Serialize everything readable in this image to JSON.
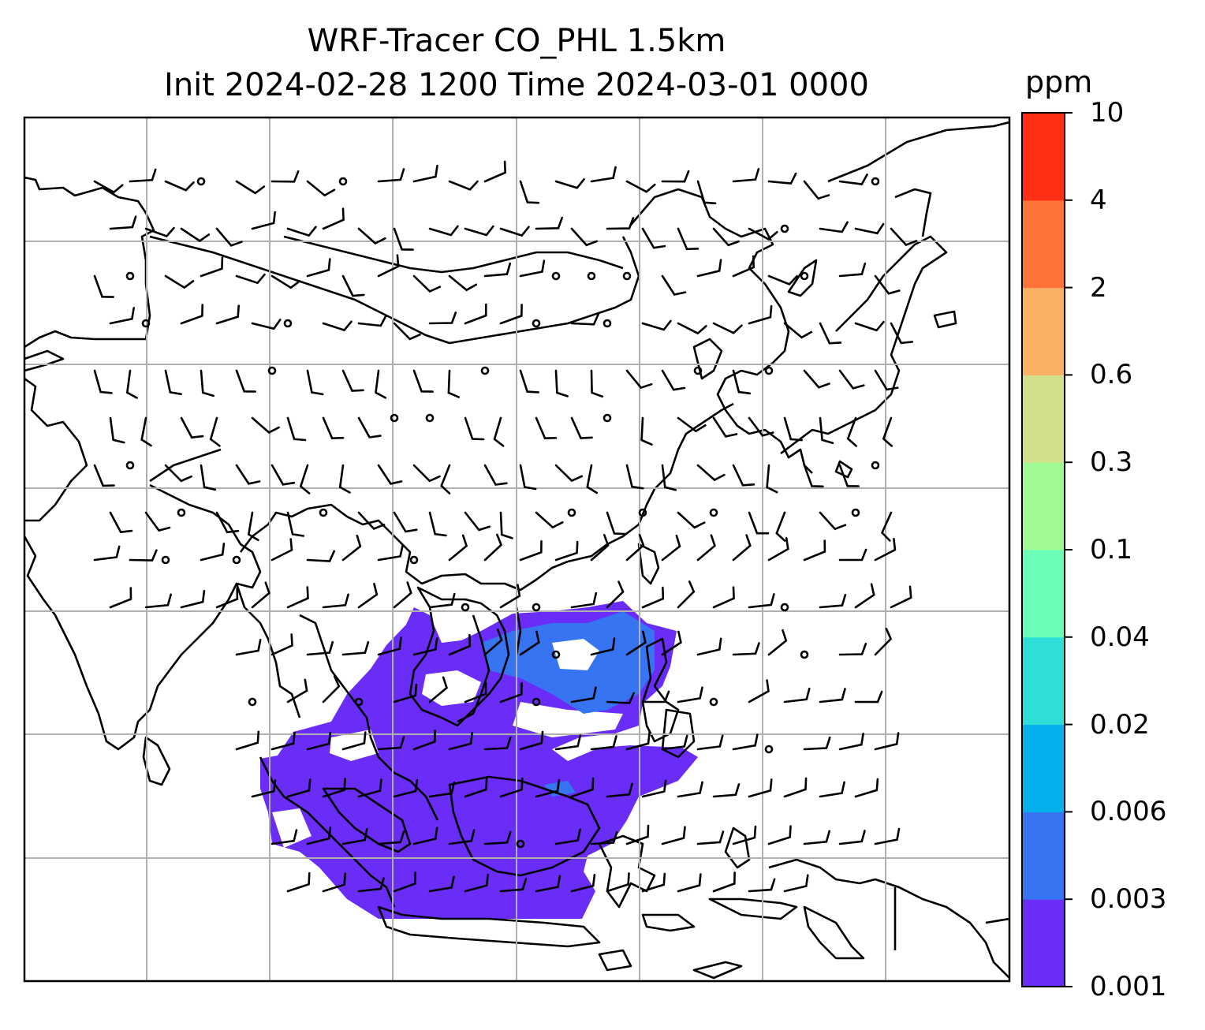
{
  "title": {
    "line1": "WRF-Tracer CO_PHL 1.5km",
    "line2": "Init 2024-02-28 1200 Time 2024-03-01 0000"
  },
  "colorbar": {
    "unit": "ppm",
    "levels": [
      "0.001",
      "0.003",
      "0.006",
      "0.02",
      "0.04",
      "0.1",
      "0.3",
      "0.6",
      "2",
      "4",
      "10"
    ],
    "colors": [
      "#6a2cf7",
      "#3674f2",
      "#05b1ec",
      "#2fdfd7",
      "#6cfdb8",
      "#a1fb95",
      "#d3e08a",
      "#fbb165",
      "#fd7338",
      "#ff2f16"
    ]
  },
  "map": {
    "region": "East and Southeast Asia",
    "tracer": "CO_PHL",
    "gridlines": true,
    "coastlines_color": "#000000",
    "gridline_color": "#b0b0b0"
  }
}
